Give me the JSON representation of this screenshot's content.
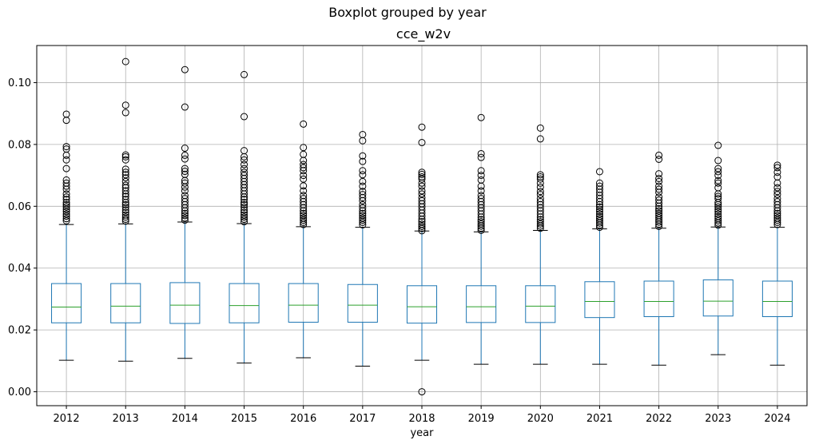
{
  "chart_data": {
    "type": "box",
    "suptitle": "Boxplot grouped by year",
    "title": "cce_w2v",
    "xlabel": "year",
    "ylabel": "",
    "ylim": [
      -0.0045,
      0.112
    ],
    "yticks": [
      "0.00",
      "0.02",
      "0.04",
      "0.06",
      "0.08",
      "0.10"
    ],
    "grid": true,
    "colors": {
      "box": "#1f77b4",
      "median": "#2ca02c",
      "whisker_cap": "#000000",
      "flier": "#000000",
      "grid": "#b0b0b0"
    },
    "categories": [
      "2012",
      "2013",
      "2014",
      "2015",
      "2016",
      "2017",
      "2018",
      "2019",
      "2020",
      "2021",
      "2022",
      "2023",
      "2024"
    ],
    "boxes": [
      {
        "year": "2012",
        "whislo": 0.0102,
        "q1": 0.0223,
        "med": 0.0274,
        "q3": 0.035,
        "whishi": 0.0541,
        "fliers": [
          0.0898,
          0.0878,
          0.0793,
          0.0785,
          0.0765,
          0.075,
          0.0722,
          0.0685,
          0.0675,
          0.0665,
          0.0655,
          0.064,
          0.063,
          0.0622,
          0.0612,
          0.0605,
          0.0598,
          0.059,
          0.0583,
          0.0575,
          0.0568,
          0.056,
          0.0553
        ]
      },
      {
        "year": "2013",
        "whislo": 0.0099,
        "q1": 0.0223,
        "med": 0.0277,
        "q3": 0.035,
        "whishi": 0.0543,
        "fliers": [
          0.1068,
          0.0927,
          0.0903,
          0.0766,
          0.076,
          0.075,
          0.072,
          0.071,
          0.0702,
          0.0692,
          0.068,
          0.0668,
          0.066,
          0.065,
          0.064,
          0.0632,
          0.0622,
          0.0612,
          0.0605,
          0.0597,
          0.0588,
          0.058,
          0.0572,
          0.0565,
          0.0558,
          0.0552
        ]
      },
      {
        "year": "2014",
        "whislo": 0.0108,
        "q1": 0.0221,
        "med": 0.028,
        "q3": 0.0353,
        "whishi": 0.0549,
        "fliers": [
          0.1042,
          0.0921,
          0.0788,
          0.0765,
          0.0753,
          0.0722,
          0.0713,
          0.0703,
          0.0683,
          0.0675,
          0.0662,
          0.065,
          0.0635,
          0.0625,
          0.0615,
          0.0605,
          0.0595,
          0.0585,
          0.0577,
          0.057,
          0.0562,
          0.0555
        ]
      },
      {
        "year": "2015",
        "whislo": 0.0093,
        "q1": 0.0223,
        "med": 0.0279,
        "q3": 0.035,
        "whishi": 0.0544,
        "fliers": [
          0.1026,
          0.089,
          0.078,
          0.076,
          0.075,
          0.0735,
          0.0722,
          0.071,
          0.07,
          0.069,
          0.068,
          0.067,
          0.066,
          0.065,
          0.064,
          0.063,
          0.0622,
          0.0612,
          0.0605,
          0.0597,
          0.0588,
          0.058,
          0.0572,
          0.0565,
          0.0558,
          0.055
        ]
      },
      {
        "year": "2016",
        "whislo": 0.011,
        "q1": 0.0225,
        "med": 0.028,
        "q3": 0.035,
        "whishi": 0.0534,
        "fliers": [
          0.0866,
          0.079,
          0.0768,
          0.0748,
          0.0735,
          0.0725,
          0.0715,
          0.07,
          0.0688,
          0.0666,
          0.065,
          0.0635,
          0.0625,
          0.0615,
          0.0605,
          0.0595,
          0.0585,
          0.0577,
          0.057,
          0.0562,
          0.0555,
          0.0548,
          0.0541
        ]
      },
      {
        "year": "2017",
        "whislo": 0.0083,
        "q1": 0.0225,
        "med": 0.028,
        "q3": 0.0347,
        "whishi": 0.0532,
        "fliers": [
          0.0832,
          0.0812,
          0.0763,
          0.0745,
          0.0715,
          0.0702,
          0.068,
          0.0665,
          0.0648,
          0.0638,
          0.0628,
          0.0618,
          0.0605,
          0.0595,
          0.0585,
          0.0577,
          0.057,
          0.0562,
          0.0555,
          0.0548,
          0.054
        ]
      },
      {
        "year": "2018",
        "whislo": 0.0102,
        "q1": 0.0222,
        "med": 0.0275,
        "q3": 0.0343,
        "whishi": 0.052,
        "fliers": [
          0.0856,
          0.0806,
          0.071,
          0.0703,
          0.0695,
          0.0688,
          0.0675,
          0.0665,
          0.065,
          0.064,
          0.0628,
          0.0618,
          0.0608,
          0.0598,
          0.0588,
          0.0578,
          0.0568,
          0.0558,
          0.055,
          0.0542,
          0.0535,
          0.0528,
          0.0521,
          0.0
        ]
      },
      {
        "year": "2019",
        "whislo": 0.0089,
        "q1": 0.0224,
        "med": 0.0275,
        "q3": 0.0343,
        "whishi": 0.0517,
        "fliers": [
          0.0887,
          0.077,
          0.0758,
          0.0715,
          0.07,
          0.0685,
          0.0665,
          0.065,
          0.0635,
          0.0625,
          0.0615,
          0.0605,
          0.0595,
          0.0585,
          0.0575,
          0.0565,
          0.0557,
          0.055,
          0.0543,
          0.0536,
          0.0529,
          0.0522
        ]
      },
      {
        "year": "2020",
        "whislo": 0.0089,
        "q1": 0.0224,
        "med": 0.0277,
        "q3": 0.0343,
        "whishi": 0.0522,
        "fliers": [
          0.0853,
          0.0818,
          0.0702,
          0.0695,
          0.0688,
          0.0675,
          0.0662,
          0.0648,
          0.0638,
          0.0625,
          0.0615,
          0.0605,
          0.0595,
          0.0585,
          0.0575,
          0.0565,
          0.0557,
          0.055,
          0.0543,
          0.0536,
          0.0529
        ]
      },
      {
        "year": "2021",
        "whislo": 0.0089,
        "q1": 0.024,
        "med": 0.0292,
        "q3": 0.0356,
        "whishi": 0.0527,
        "fliers": [
          0.0712,
          0.0675,
          0.0665,
          0.0655,
          0.0645,
          0.0635,
          0.0625,
          0.0615,
          0.0605,
          0.0598,
          0.059,
          0.0583,
          0.0575,
          0.0567,
          0.056,
          0.0553,
          0.0546,
          0.0539,
          0.0532
        ]
      },
      {
        "year": "2022",
        "whislo": 0.0086,
        "q1": 0.0243,
        "med": 0.0292,
        "q3": 0.0358,
        "whishi": 0.0529,
        "fliers": [
          0.0765,
          0.0752,
          0.0705,
          0.069,
          0.068,
          0.0665,
          0.0655,
          0.0645,
          0.063,
          0.062,
          0.061,
          0.06,
          0.0592,
          0.0585,
          0.0577,
          0.057,
          0.0563,
          0.0556,
          0.0549,
          0.0542,
          0.0535
        ]
      },
      {
        "year": "2023",
        "whislo": 0.012,
        "q1": 0.0245,
        "med": 0.0293,
        "q3": 0.0362,
        "whishi": 0.0533,
        "fliers": [
          0.0797,
          0.0748,
          0.0722,
          0.0712,
          0.07,
          0.0683,
          0.0675,
          0.066,
          0.064,
          0.0632,
          0.0625,
          0.0612,
          0.0605,
          0.0598,
          0.059,
          0.0583,
          0.0575,
          0.0567,
          0.056,
          0.0553,
          0.0546,
          0.0539
        ]
      },
      {
        "year": "2024",
        "whislo": 0.0086,
        "q1": 0.0243,
        "med": 0.0292,
        "q3": 0.0358,
        "whishi": 0.0532,
        "fliers": [
          0.0733,
          0.0725,
          0.071,
          0.0695,
          0.0675,
          0.066,
          0.0648,
          0.0638,
          0.0625,
          0.0615,
          0.0605,
          0.0595,
          0.0585,
          0.0577,
          0.057,
          0.0562,
          0.0555,
          0.0548,
          0.0541
        ]
      }
    ]
  }
}
